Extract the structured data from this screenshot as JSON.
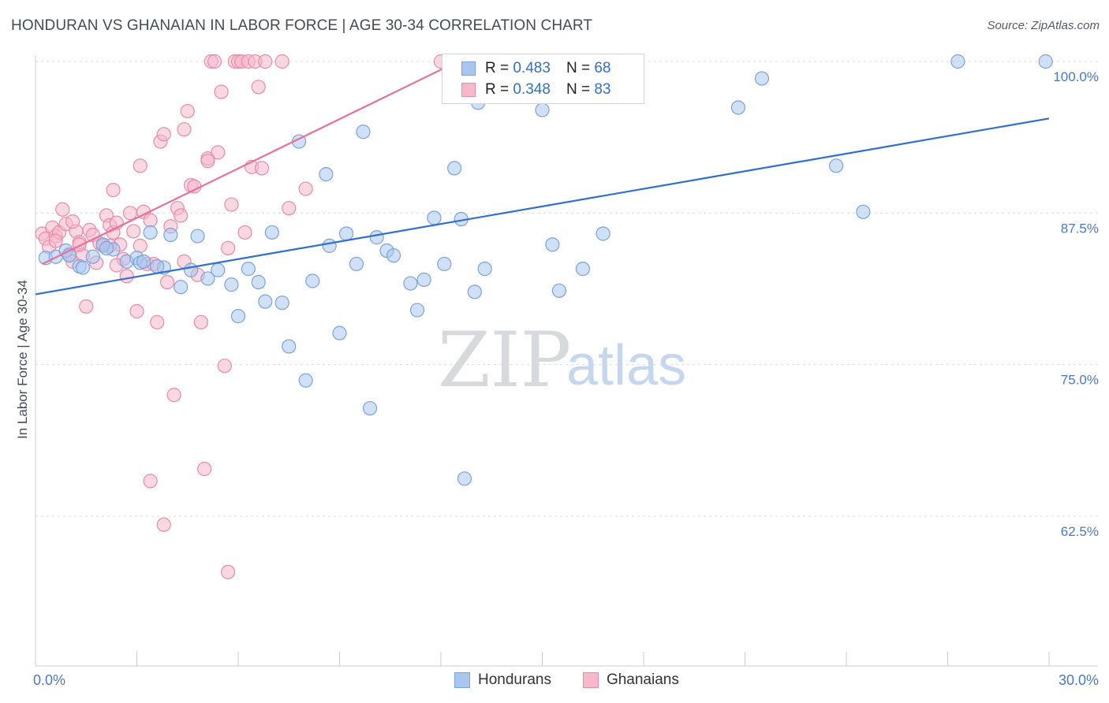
{
  "header": {
    "title": "HONDURAN VS GHANAIAN IN LABOR FORCE | AGE 30-34 CORRELATION CHART",
    "source": "Source: ZipAtlas.com"
  },
  "watermark": {
    "zip": "ZIP",
    "atlas": "atlas"
  },
  "legend": {
    "rows": [
      {
        "r_label": "R = ",
        "r_value": "0.483",
        "n_label": "N = ",
        "n_value": "68",
        "color": "#a9c6ee",
        "border": "#7aa3dc"
      },
      {
        "r_label": "R = ",
        "r_value": "0.348",
        "n_label": "N = ",
        "n_value": "83",
        "color": "#f6b8cb",
        "border": "#e98aa8"
      }
    ]
  },
  "bottom_legend": {
    "hondurans": "Hondurans",
    "ghanaians": "Ghanaians"
  },
  "chart_data": {
    "type": "scatter",
    "title": "HONDURAN VS GHANAIAN IN LABOR FORCE | AGE 30-34 CORRELATION CHART",
    "xlabel": "",
    "ylabel": "In Labor Force | Age 30-34",
    "xlim": [
      0,
      30
    ],
    "ylim": [
      50,
      101.5
    ],
    "x_tick_labels": [
      {
        "value": 0,
        "label": "0.0%"
      },
      {
        "value": 30,
        "label": "30.0%"
      }
    ],
    "y_tick_labels": [
      {
        "value": 100,
        "label": "100.0%"
      },
      {
        "value": 87.5,
        "label": "87.5%"
      },
      {
        "value": 75,
        "label": "75.0%"
      },
      {
        "value": 62.5,
        "label": "62.5%"
      }
    ],
    "series": [
      {
        "name": "Hondurans",
        "color": "#a9c6ee",
        "stroke": "#7aa3dc",
        "line_color": "#2f6fd0",
        "trend": {
          "x": [
            0,
            30
          ],
          "y": [
            80.8,
            95.3
          ]
        },
        "points": [
          [
            0.3,
            83.8
          ],
          [
            0.6,
            83.9
          ],
          [
            0.9,
            84.4
          ],
          [
            1.3,
            83.1
          ],
          [
            1.7,
            83.9
          ],
          [
            2.3,
            84.5
          ],
          [
            2.7,
            83.5
          ],
          [
            3.0,
            83.8
          ],
          [
            3.1,
            83.4
          ],
          [
            3.4,
            85.9
          ],
          [
            3.8,
            83.0
          ],
          [
            4.0,
            85.7
          ],
          [
            4.3,
            81.4
          ],
          [
            4.6,
            82.8
          ],
          [
            4.8,
            85.6
          ],
          [
            5.1,
            82.1
          ],
          [
            5.4,
            82.8
          ],
          [
            5.8,
            81.6
          ],
          [
            6.0,
            79.0
          ],
          [
            6.3,
            82.9
          ],
          [
            6.6,
            81.8
          ],
          [
            6.8,
            80.2
          ],
          [
            7.0,
            85.9
          ],
          [
            7.3,
            80.1
          ],
          [
            7.5,
            76.5
          ],
          [
            7.8,
            93.4
          ],
          [
            8.0,
            73.7
          ],
          [
            8.2,
            81.9
          ],
          [
            8.6,
            90.7
          ],
          [
            8.7,
            84.8
          ],
          [
            9.0,
            77.6
          ],
          [
            9.2,
            85.8
          ],
          [
            9.5,
            83.3
          ],
          [
            9.7,
            94.2
          ],
          [
            9.9,
            71.4
          ],
          [
            10.1,
            85.5
          ],
          [
            10.4,
            84.4
          ],
          [
            10.6,
            84.0
          ],
          [
            11.1,
            81.7
          ],
          [
            11.3,
            79.5
          ],
          [
            11.5,
            82.0
          ],
          [
            11.8,
            87.1
          ],
          [
            12.1,
            83.3
          ],
          [
            12.4,
            91.2
          ],
          [
            12.6,
            87.0
          ],
          [
            12.7,
            65.6
          ],
          [
            13.0,
            81.0
          ],
          [
            13.3,
            82.9
          ],
          [
            14.0,
            100.0
          ],
          [
            14.3,
            99.2
          ],
          [
            15.0,
            96.0
          ],
          [
            15.3,
            84.9
          ],
          [
            15.5,
            81.1
          ],
          [
            16.2,
            82.9
          ],
          [
            16.8,
            85.8
          ],
          [
            20.8,
            96.2
          ],
          [
            21.5,
            98.6
          ],
          [
            23.7,
            91.4
          ],
          [
            24.5,
            87.6
          ],
          [
            27.3,
            100.0
          ],
          [
            29.9,
            100.0
          ],
          [
            13.1,
            96.6
          ],
          [
            1.0,
            84.0
          ],
          [
            2.0,
            84.9
          ],
          [
            1.4,
            83.0
          ],
          [
            3.2,
            83.5
          ],
          [
            3.6,
            83.1
          ],
          [
            2.1,
            84.6
          ]
        ]
      },
      {
        "name": "Ghanaians",
        "color": "#f6b8cb",
        "stroke": "#e98aa8",
        "line_color": "#e8709a",
        "trend": {
          "x": [
            0.2,
            12.5
          ],
          "y": [
            83.3,
            100.0
          ]
        },
        "points": [
          [
            0.2,
            85.8
          ],
          [
            0.3,
            85.4
          ],
          [
            0.4,
            84.7
          ],
          [
            0.5,
            86.3
          ],
          [
            0.6,
            85.6
          ],
          [
            0.7,
            85.9
          ],
          [
            0.8,
            87.8
          ],
          [
            0.9,
            86.6
          ],
          [
            1.0,
            84.1
          ],
          [
            1.1,
            83.5
          ],
          [
            1.2,
            86.0
          ],
          [
            1.3,
            85.1
          ],
          [
            1.4,
            84.0
          ],
          [
            1.5,
            79.8
          ],
          [
            1.6,
            86.1
          ],
          [
            1.7,
            85.7
          ],
          [
            1.8,
            83.4
          ],
          [
            1.9,
            85.0
          ],
          [
            2.0,
            84.8
          ],
          [
            2.1,
            87.3
          ],
          [
            2.2,
            86.5
          ],
          [
            2.3,
            85.9
          ],
          [
            2.4,
            86.7
          ],
          [
            2.5,
            84.9
          ],
          [
            2.6,
            83.7
          ],
          [
            2.7,
            82.3
          ],
          [
            2.8,
            87.5
          ],
          [
            2.9,
            86.0
          ],
          [
            3.0,
            79.4
          ],
          [
            3.1,
            84.8
          ],
          [
            3.2,
            87.6
          ],
          [
            3.3,
            83.3
          ],
          [
            3.4,
            86.9
          ],
          [
            3.5,
            83.3
          ],
          [
            3.6,
            78.5
          ],
          [
            3.7,
            93.4
          ],
          [
            3.8,
            94.0
          ],
          [
            4.0,
            86.4
          ],
          [
            4.1,
            72.5
          ],
          [
            4.2,
            87.9
          ],
          [
            4.3,
            87.3
          ],
          [
            4.4,
            83.5
          ],
          [
            4.5,
            95.9
          ],
          [
            4.6,
            89.8
          ],
          [
            4.7,
            89.7
          ],
          [
            4.8,
            82.4
          ],
          [
            4.9,
            78.5
          ],
          [
            5.0,
            66.4
          ],
          [
            5.1,
            92.0
          ],
          [
            5.2,
            100.0
          ],
          [
            5.3,
            100.0
          ],
          [
            5.4,
            92.5
          ],
          [
            5.5,
            97.5
          ],
          [
            5.6,
            74.9
          ],
          [
            5.7,
            84.6
          ],
          [
            5.8,
            88.2
          ],
          [
            5.9,
            100.0
          ],
          [
            6.0,
            100.0
          ],
          [
            6.1,
            100.0
          ],
          [
            6.2,
            85.9
          ],
          [
            6.3,
            100.0
          ],
          [
            6.4,
            91.3
          ],
          [
            6.5,
            100.0
          ],
          [
            6.6,
            97.9
          ],
          [
            6.7,
            91.2
          ],
          [
            6.8,
            100.0
          ],
          [
            7.3,
            100.0
          ],
          [
            7.5,
            87.9
          ],
          [
            8.0,
            89.5
          ],
          [
            12.0,
            100.0
          ],
          [
            3.4,
            65.4
          ],
          [
            3.8,
            61.8
          ],
          [
            5.7,
            57.9
          ],
          [
            1.1,
            86.8
          ],
          [
            2.2,
            84.8
          ],
          [
            3.1,
            91.4
          ],
          [
            2.3,
            89.4
          ],
          [
            3.9,
            81.8
          ],
          [
            4.4,
            94.4
          ],
          [
            5.1,
            91.8
          ],
          [
            1.3,
            84.9
          ],
          [
            2.4,
            83.2
          ],
          [
            0.6,
            85.2
          ]
        ]
      }
    ]
  }
}
